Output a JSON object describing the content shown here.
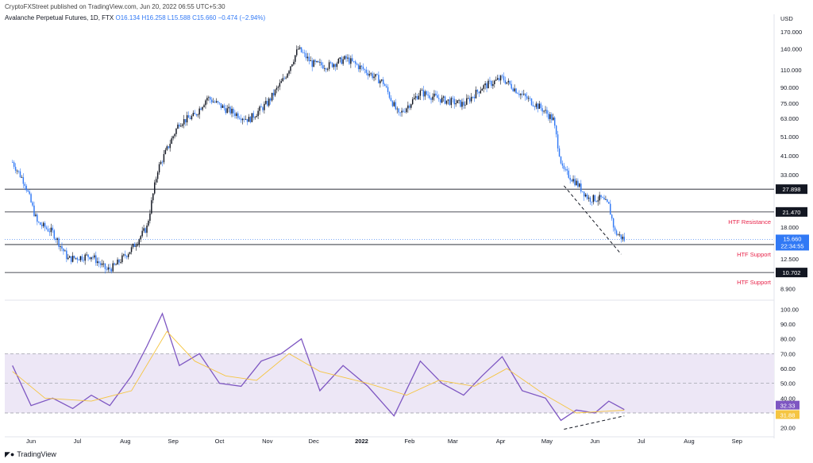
{
  "header": {
    "published": "CryptoFXStreet published on TradingView.com, Jun 20, 2022 06:55 UTC+5:30",
    "symbol": "Avalanche Perpetual Futures, 1D, FTX",
    "o": "O16.134",
    "h": "H16.258",
    "l": "L15.588",
    "c": "C15.660",
    "chg": "−0.474 (−2.94%)"
  },
  "footer": {
    "brand": "TradingView",
    "logo_icon": "tradingview-logo-icon"
  },
  "colors": {
    "candle_up": "#131722",
    "candle_down": "#3179f5",
    "rsi": "#7e57c2",
    "rsi_ma": "#f5c542",
    "rsi_band": "#ede7f6",
    "level_line": "#131722",
    "annotation": "#e8244a",
    "last_price": "#3179f5"
  },
  "chart_data": [
    {
      "type": "candlestick",
      "title": "",
      "currency_label": "USD",
      "y_scale": "log",
      "ylim": [
        8.0,
        190.0
      ],
      "y_ticks": [
        "170.000",
        "140.000",
        "110.000",
        "90.000",
        "75.000",
        "63.000",
        "51.000",
        "41.000",
        "33.000",
        "18.000",
        "12.500",
        "8.900"
      ],
      "x_ticks": [
        "Jun",
        "Jul",
        "Aug",
        "Sep",
        "Oct",
        "Nov",
        "Dec",
        "2022",
        "Feb",
        "Mar",
        "Apr",
        "May",
        "Jun",
        "Jul",
        "Aug",
        "Sep"
      ],
      "close_path": [
        {
          "x": "2021-05-20",
          "y": 38
        },
        {
          "x": "2021-05-28",
          "y": 30
        },
        {
          "x": "2021-06-05",
          "y": 19
        },
        {
          "x": "2021-06-15",
          "y": 17
        },
        {
          "x": "2021-06-25",
          "y": 12.5
        },
        {
          "x": "2021-07-10",
          "y": 13
        },
        {
          "x": "2021-07-20",
          "y": 11
        },
        {
          "x": "2021-07-25",
          "y": 11.5
        },
        {
          "x": "2021-08-05",
          "y": 14
        },
        {
          "x": "2021-08-15",
          "y": 18
        },
        {
          "x": "2021-08-22",
          "y": 35
        },
        {
          "x": "2021-09-05",
          "y": 60
        },
        {
          "x": "2021-09-15",
          "y": 65
        },
        {
          "x": "2021-09-23",
          "y": 80
        },
        {
          "x": "2021-10-05",
          "y": 70
        },
        {
          "x": "2021-10-20",
          "y": 62
        },
        {
          "x": "2021-11-01",
          "y": 75
        },
        {
          "x": "2021-11-12",
          "y": 100
        },
        {
          "x": "2021-11-21",
          "y": 140
        },
        {
          "x": "2021-11-30",
          "y": 118
        },
        {
          "x": "2021-12-10",
          "y": 115
        },
        {
          "x": "2021-12-22",
          "y": 125
        },
        {
          "x": "2022-01-01",
          "y": 112
        },
        {
          "x": "2022-01-15",
          "y": 95
        },
        {
          "x": "2022-01-25",
          "y": 65
        },
        {
          "x": "2022-02-08",
          "y": 85
        },
        {
          "x": "2022-02-22",
          "y": 78
        },
        {
          "x": "2022-03-08",
          "y": 74
        },
        {
          "x": "2022-03-20",
          "y": 90
        },
        {
          "x": "2022-04-02",
          "y": 100
        },
        {
          "x": "2022-04-15",
          "y": 82
        },
        {
          "x": "2022-04-28",
          "y": 70
        },
        {
          "x": "2022-05-05",
          "y": 62
        },
        {
          "x": "2022-05-11",
          "y": 35
        },
        {
          "x": "2022-05-20",
          "y": 30
        },
        {
          "x": "2022-05-28",
          "y": 25
        },
        {
          "x": "2022-06-05",
          "y": 25
        },
        {
          "x": "2022-06-10",
          "y": 23
        },
        {
          "x": "2022-06-14",
          "y": 17
        },
        {
          "x": "2022-06-20",
          "y": 15.66
        }
      ],
      "levels": [
        {
          "value": 27.898,
          "label": "27.898",
          "annotation": ""
        },
        {
          "value": 21.47,
          "label": "21.470",
          "annotation": "HTF Resistance"
        },
        {
          "value": 14.753,
          "label": "14.753",
          "annotation": "HTF Support"
        },
        {
          "value": 10.702,
          "label": "10.702",
          "annotation": "HTF Support"
        }
      ],
      "last_price": {
        "value": 15.66,
        "label": "15.660",
        "countdown": "22:34:55"
      },
      "trendline": {
        "from": {
          "x": "2022-05-12",
          "y": 29
        },
        "to": {
          "x": "2022-06-18",
          "y": 13.2
        },
        "style": "dashed"
      }
    },
    {
      "type": "line",
      "title": "",
      "ylim": [
        15,
        105
      ],
      "y_ticks": [
        "100.00",
        "90.00",
        "80.00",
        "70.00",
        "60.00",
        "50.00",
        "40.00",
        "20.00"
      ],
      "band": [
        30,
        70
      ],
      "midline": 50,
      "series": [
        {
          "name": "",
          "points": [
            {
              "x": "2021-05-20",
              "y": 62
            },
            {
              "x": "2021-06-01",
              "y": 35
            },
            {
              "x": "2021-06-15",
              "y": 40
            },
            {
              "x": "2021-06-28",
              "y": 33
            },
            {
              "x": "2021-07-10",
              "y": 42
            },
            {
              "x": "2021-07-22",
              "y": 35
            },
            {
              "x": "2021-08-05",
              "y": 55
            },
            {
              "x": "2021-08-15",
              "y": 75
            },
            {
              "x": "2021-08-25",
              "y": 97
            },
            {
              "x": "2021-09-05",
              "y": 62
            },
            {
              "x": "2021-09-18",
              "y": 70
            },
            {
              "x": "2021-10-01",
              "y": 50
            },
            {
              "x": "2021-10-15",
              "y": 48
            },
            {
              "x": "2021-10-28",
              "y": 65
            },
            {
              "x": "2021-11-10",
              "y": 70
            },
            {
              "x": "2021-11-23",
              "y": 80
            },
            {
              "x": "2021-12-05",
              "y": 45
            },
            {
              "x": "2021-12-20",
              "y": 62
            },
            {
              "x": "2022-01-05",
              "y": 48
            },
            {
              "x": "2022-01-22",
              "y": 28
            },
            {
              "x": "2022-02-08",
              "y": 65
            },
            {
              "x": "2022-02-22",
              "y": 50
            },
            {
              "x": "2022-03-08",
              "y": 42
            },
            {
              "x": "2022-03-20",
              "y": 55
            },
            {
              "x": "2022-04-02",
              "y": 68
            },
            {
              "x": "2022-04-15",
              "y": 45
            },
            {
              "x": "2022-04-30",
              "y": 40
            },
            {
              "x": "2022-05-10",
              "y": 25
            },
            {
              "x": "2022-05-20",
              "y": 32
            },
            {
              "x": "2022-06-01",
              "y": 30
            },
            {
              "x": "2022-06-10",
              "y": 38
            },
            {
              "x": "2022-06-20",
              "y": 32.33
            }
          ]
        },
        {
          "name": "",
          "points": [
            {
              "x": "2021-05-20",
              "y": 58
            },
            {
              "x": "2021-06-10",
              "y": 40
            },
            {
              "x": "2021-07-10",
              "y": 38
            },
            {
              "x": "2021-08-05",
              "y": 45
            },
            {
              "x": "2021-08-28",
              "y": 85
            },
            {
              "x": "2021-09-15",
              "y": 65
            },
            {
              "x": "2021-10-05",
              "y": 55
            },
            {
              "x": "2021-10-25",
              "y": 52
            },
            {
              "x": "2021-11-15",
              "y": 70
            },
            {
              "x": "2021-12-05",
              "y": 58
            },
            {
              "x": "2022-01-05",
              "y": 50
            },
            {
              "x": "2022-01-30",
              "y": 42
            },
            {
              "x": "2022-02-20",
              "y": 52
            },
            {
              "x": "2022-03-15",
              "y": 48
            },
            {
              "x": "2022-04-05",
              "y": 60
            },
            {
              "x": "2022-04-30",
              "y": 42
            },
            {
              "x": "2022-05-20",
              "y": 30
            },
            {
              "x": "2022-06-20",
              "y": 31.88
            }
          ]
        }
      ],
      "last_values": [
        {
          "label": "32.33",
          "color": "#7e57c2"
        },
        {
          "label": "31.88",
          "color": "#f5c542"
        }
      ],
      "trendline": {
        "from": {
          "x": "2022-05-12",
          "y": 19
        },
        "to": {
          "x": "2022-06-20",
          "y": 28
        },
        "style": "dashed"
      }
    }
  ]
}
